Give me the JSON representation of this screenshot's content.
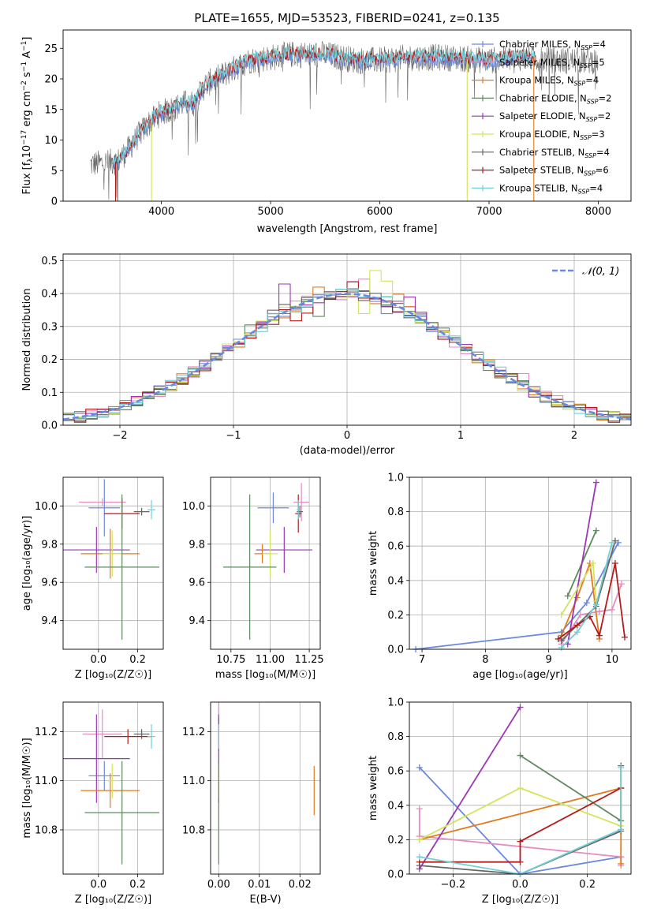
{
  "colors": {
    "Chabrier MILES": "#6a89e0",
    "Salpeter MILES": "#e58cc0",
    "Kroupa MILES": "#e07b1f",
    "Chabrier ELODIE": "#5e8a5e",
    "Salpeter ELODIE": "#9b36b5",
    "Kroupa ELODIE": "#d4e45a",
    "Chabrier STELIB": "#666666",
    "Salpeter STELIB": "#b31b1b",
    "Kroupa STELIB": "#72cfd6"
  },
  "chart_data": [
    {
      "id": "spectrum",
      "type": "line",
      "title": "PLATE=1655, MJD=53523, FIBERID=0241, z=0.135",
      "xlabel": "wavelength [Angstrom, rest frame]",
      "ylabel_parts": [
        "Flux [f",
        "λ",
        "10",
        "−17",
        " erg cm",
        "−2",
        " s",
        "−1",
        " A",
        "−1",
        "]"
      ],
      "xlim": [
        3100,
        8300
      ],
      "ylim": [
        0,
        28
      ],
      "xticks": [
        "4000",
        "5000",
        "6000",
        "7000",
        "8000"
      ],
      "yticks": [
        "0",
        "5",
        "10",
        "15",
        "20",
        "25"
      ],
      "legend_placement": "right",
      "legend": [
        {
          "label": "Chabrier MILES, N",
          "sub": "SSP",
          "suffix": "=4",
          "series": "Chabrier MILES"
        },
        {
          "label": "Salpeter MILES, N",
          "sub": "SSP",
          "suffix": "=5",
          "series": "Salpeter MILES"
        },
        {
          "label": "Kroupa MILES, N",
          "sub": "SSP",
          "suffix": "=4",
          "series": "Kroupa MILES"
        },
        {
          "label": "Chabrier ELODIE, N",
          "sub": "SSP",
          "suffix": "=2",
          "series": "Chabrier ELODIE"
        },
        {
          "label": "Salpeter ELODIE, N",
          "sub": "SSP",
          "suffix": "=2",
          "series": "Salpeter ELODIE"
        },
        {
          "label": "Kroupa ELODIE, N",
          "sub": "SSP",
          "suffix": "=3",
          "series": "Kroupa ELODIE"
        },
        {
          "label": "Chabrier STELIB, N",
          "sub": "SSP",
          "suffix": "=4",
          "series": "Chabrier STELIB"
        },
        {
          "label": "Salpeter STELIB, N",
          "sub": "SSP",
          "suffix": "=6",
          "series": "Salpeter STELIB"
        },
        {
          "label": "Kroupa STELIB, N",
          "sub": "SSP",
          "suffix": "=4",
          "series": "Kroupa STELIB"
        }
      ],
      "continuum": {
        "x": [
          3350,
          3600,
          3700,
          3800,
          3900,
          4000,
          4100,
          4200,
          4300,
          4400,
          4600,
          4800,
          5000,
          5200,
          5500,
          5800,
          6000,
          6300,
          6600,
          7000,
          7300,
          7600,
          8000
        ],
        "y": [
          6,
          6.5,
          8.5,
          11,
          13,
          14.5,
          15,
          16,
          16,
          19,
          21,
          23,
          23.5,
          24,
          24,
          23,
          23,
          23.5,
          23.5,
          23,
          23.5,
          23,
          23
        ]
      },
      "model_x_range": [
        3550,
        7420
      ],
      "dropouts": [
        {
          "series": "Salpeter STELIB",
          "x": 3580
        },
        {
          "series": "Chabrier STELIB",
          "x": 3600
        },
        {
          "series": "Kroupa ELODIE",
          "x": 3910
        },
        {
          "series": "Kroupa ELODIE",
          "x": 6800
        },
        {
          "series": "Kroupa MILES",
          "x": 7410
        }
      ]
    },
    {
      "id": "residual_hist",
      "type": "histogram",
      "xlabel": "(data-model)/error",
      "ylabel": "Normed distribution",
      "xlim": [
        -2.5,
        2.5
      ],
      "ylim": [
        0,
        0.52
      ],
      "xticks": [
        "−2",
        "−1",
        "0",
        "1",
        "2"
      ],
      "yticks": [
        "0.0",
        "0.1",
        "0.2",
        "0.3",
        "0.4",
        "0.5"
      ],
      "grid": true,
      "bin_width": 0.1,
      "reference": {
        "label": "𝒩(0, 1)",
        "mean": 0,
        "sigma": 1,
        "style": "dashed"
      },
      "series_bumps": [
        {
          "series": "Chabrier MILES",
          "at": [
            0.0,
            0.3
          ],
          "amp": [
            0.03,
            -0.02
          ]
        },
        {
          "series": "Salpeter MILES",
          "at": [
            0.1,
            1.6
          ],
          "amp": [
            0.05,
            0.02
          ]
        },
        {
          "series": "Kroupa MILES",
          "at": [
            -0.25,
            0.4
          ],
          "amp": [
            0.05,
            0.03
          ]
        },
        {
          "series": "Chabrier ELODIE",
          "at": [
            -0.25,
            -0.85
          ],
          "amp": [
            -0.05,
            0.03
          ]
        },
        {
          "series": "Salpeter ELODIE",
          "at": [
            -0.55,
            0.6
          ],
          "amp": [
            0.08,
            0.03
          ]
        },
        {
          "series": "Kroupa ELODIE",
          "at": [
            0.3,
            0.15
          ],
          "amp": [
            0.08,
            -0.04
          ]
        },
        {
          "series": "Chabrier STELIB",
          "at": [
            0.0,
            -0.6
          ],
          "amp": [
            0.01,
            0.02
          ]
        },
        {
          "series": "Salpeter STELIB",
          "at": [
            0.05,
            -0.4
          ],
          "amp": [
            0.05,
            -0.04
          ]
        },
        {
          "series": "Kroupa STELIB",
          "at": [
            0.0,
            0.4
          ],
          "amp": [
            0.0,
            0.01
          ]
        }
      ]
    },
    {
      "id": "age_vs_Z",
      "type": "errorbar",
      "xlabel": "Z [log₁₀(Z/Z☉)]",
      "ylabel": "age  [log₁₀(age/yr)]",
      "xlim": [
        -0.18,
        0.33
      ],
      "ylim": [
        9.25,
        10.15
      ],
      "xticks": [
        0.0,
        0.2
      ],
      "xtick_labels": [
        "0.0",
        "0.2"
      ],
      "yticks": [
        9.4,
        9.6,
        9.8,
        10.0
      ],
      "ytick_labels": [
        "9.4",
        "9.6",
        "9.8",
        "10.0"
      ],
      "grid": true,
      "points": [
        {
          "series": "Salpeter MILES",
          "x": 0.02,
          "y": 10.02,
          "xerr": 0.12,
          "yerr": 0.02
        },
        {
          "series": "Chabrier MILES",
          "x": 0.03,
          "y": 9.99,
          "xerr": 0.08,
          "yerr": 0.15
        },
        {
          "series": "Salpeter STELIB",
          "x": 0.12,
          "y": 9.96,
          "xerr": 0.09,
          "yerr": 0.08
        },
        {
          "series": "Chabrier STELIB",
          "x": 0.22,
          "y": 9.97,
          "xerr": 0.04,
          "yerr": 0.02
        },
        {
          "series": "Kroupa STELIB",
          "x": 0.27,
          "y": 9.98,
          "xerr": 0.02,
          "yerr": 0.05
        },
        {
          "series": "Salpeter ELODIE",
          "x": -0.01,
          "y": 9.77,
          "xerr": 0.17,
          "yerr": 0.12
        },
        {
          "series": "Kroupa MILES",
          "x": 0.06,
          "y": 9.75,
          "xerr": 0.15,
          "yerr": 0.13
        },
        {
          "series": "Kroupa ELODIE",
          "x": 0.07,
          "y": 9.75,
          "xerr": 0.05,
          "yerr": 0.12
        },
        {
          "series": "Chabrier ELODIE",
          "x": 0.12,
          "y": 9.68,
          "xerr": 0.19,
          "yerr": 0.38
        }
      ]
    },
    {
      "id": "age_vs_mass",
      "type": "errorbar",
      "xlabel": "mass [log₁₀(M/M☉)]",
      "ylabel": "",
      "xlim": [
        10.62,
        11.32
      ],
      "ylim": [
        9.25,
        10.15
      ],
      "xticks": [
        10.75,
        11.0,
        11.25
      ],
      "xtick_labels": [
        "10.75",
        "11.00",
        "11.25"
      ],
      "yticks": [
        9.4,
        9.6,
        9.8,
        10.0
      ],
      "ytick_labels": [
        "9.4",
        "9.6",
        "9.8",
        "10.0"
      ],
      "grid": true,
      "points": [
        {
          "series": "Salpeter MILES",
          "x": 11.2,
          "y": 10.02,
          "xerr": 0.05,
          "yerr": 0.1
        },
        {
          "series": "Chabrier MILES",
          "x": 11.02,
          "y": 9.99,
          "xerr": 0.1,
          "yerr": 0.08
        },
        {
          "series": "Salpeter STELIB",
          "x": 11.18,
          "y": 9.96,
          "xerr": 0.02,
          "yerr": 0.1
        },
        {
          "series": "Chabrier STELIB",
          "x": 11.19,
          "y": 9.97,
          "xerr": 0.02,
          "yerr": 0.03
        },
        {
          "series": "Kroupa STELIB",
          "x": 11.18,
          "y": 9.98,
          "xerr": 0.01,
          "yerr": 0.05
        },
        {
          "series": "Salpeter ELODIE",
          "x": 11.09,
          "y": 9.77,
          "xerr": 0.18,
          "yerr": 0.12
        },
        {
          "series": "Kroupa MILES",
          "x": 10.95,
          "y": 9.75,
          "xerr": 0.05,
          "yerr": 0.05
        },
        {
          "series": "Kroupa ELODIE",
          "x": 11.0,
          "y": 9.75,
          "xerr": 0.05,
          "yerr": 0.12
        },
        {
          "series": "Chabrier ELODIE",
          "x": 10.87,
          "y": 9.68,
          "xerr": 0.17,
          "yerr": 0.38
        }
      ]
    },
    {
      "id": "weight_vs_age",
      "type": "line",
      "xlabel": "age  [log₁₀(age/yr)]",
      "ylabel": "mass weight",
      "xlim": [
        6.8,
        10.3
      ],
      "ylim": [
        0,
        1
      ],
      "xticks": [
        7,
        8,
        9,
        10
      ],
      "xtick_labels": [
        "7",
        "8",
        "9",
        "10"
      ],
      "yticks": [
        0,
        0.2,
        0.4,
        0.6,
        0.8,
        1.0
      ],
      "ytick_labels": [
        "0.0",
        "0.2",
        "0.4",
        "0.6",
        "0.8",
        "1.0"
      ],
      "grid": true,
      "series": [
        {
          "name": "Chabrier MILES",
          "x": [
            6.9,
            9.2,
            9.6,
            10.1
          ],
          "y": [
            0.0,
            0.1,
            0.27,
            0.62
          ]
        },
        {
          "name": "Salpeter MILES",
          "x": [
            9.2,
            9.5,
            9.8,
            10.0,
            10.15
          ],
          "y": [
            0.03,
            0.2,
            0.22,
            0.23,
            0.38
          ]
        },
        {
          "name": "Kroupa MILES",
          "x": [
            9.2,
            9.45,
            9.65,
            9.8
          ],
          "y": [
            0.08,
            0.3,
            0.5,
            0.06
          ]
        },
        {
          "name": "Chabrier ELODIE",
          "x": [
            9.3,
            9.75
          ],
          "y": [
            0.31,
            0.69
          ]
        },
        {
          "name": "Salpeter ELODIE",
          "x": [
            9.3,
            9.75
          ],
          "y": [
            0.03,
            0.97
          ]
        },
        {
          "name": "Kroupa ELODIE",
          "x": [
            9.2,
            9.7,
            9.75
          ],
          "y": [
            0.2,
            0.5,
            0.28
          ]
        },
        {
          "name": "Chabrier STELIB",
          "x": [
            9.2,
            9.75,
            10.05
          ],
          "y": [
            0.05,
            0.25,
            0.63
          ]
        },
        {
          "name": "Salpeter STELIB",
          "x": [
            9.15,
            9.45,
            9.65,
            9.8,
            10.05,
            10.2
          ],
          "y": [
            0.06,
            0.14,
            0.19,
            0.08,
            0.5,
            0.07
          ]
        },
        {
          "name": "Kroupa STELIB",
          "x": [
            9.2,
            9.45,
            9.75,
            10.0
          ],
          "y": [
            0.01,
            0.1,
            0.26,
            0.62
          ]
        }
      ]
    },
    {
      "id": "mass_vs_Z",
      "type": "errorbar",
      "xlabel": "Z [log₁₀(Z/Z☉)]",
      "ylabel": "mass [log₁₀(M/M☉)]",
      "xlim": [
        -0.18,
        0.33
      ],
      "ylim": [
        10.62,
        11.32
      ],
      "xticks": [
        0.0,
        0.2
      ],
      "xtick_labels": [
        "0.0",
        "0.2"
      ],
      "yticks": [
        10.8,
        11.0,
        11.2
      ],
      "ytick_labels": [
        "10.8",
        "11.0",
        "11.2"
      ],
      "grid": true,
      "points": [
        {
          "series": "Salpeter MILES",
          "x": 0.02,
          "y": 11.19,
          "xerr": 0.1,
          "yerr": 0.1
        },
        {
          "series": "Chabrier MILES",
          "x": 0.03,
          "y": 11.02,
          "xerr": 0.08,
          "yerr": 0.06
        },
        {
          "series": "Salpeter STELIB",
          "x": 0.15,
          "y": 11.18,
          "xerr": 0.12,
          "yerr": 0.03
        },
        {
          "series": "Chabrier STELIB",
          "x": 0.22,
          "y": 11.19,
          "xerr": 0.04,
          "yerr": 0.02
        },
        {
          "series": "Kroupa STELIB",
          "x": 0.27,
          "y": 11.18,
          "xerr": 0.02,
          "yerr": 0.05
        },
        {
          "series": "Salpeter ELODIE",
          "x": -0.01,
          "y": 11.09,
          "xerr": 0.17,
          "yerr": 0.18
        },
        {
          "series": "Kroupa MILES",
          "x": 0.06,
          "y": 10.96,
          "xerr": 0.15,
          "yerr": 0.07
        },
        {
          "series": "Kroupa ELODIE",
          "x": 0.07,
          "y": 11.0,
          "xerr": 0.03,
          "yerr": 0.07
        },
        {
          "series": "Chabrier ELODIE",
          "x": 0.12,
          "y": 10.87,
          "xerr": 0.19,
          "yerr": 0.21
        }
      ]
    },
    {
      "id": "mass_vs_ebv",
      "type": "errorbar",
      "xlabel": "E(B-V)",
      "ylabel": "",
      "xlim": [
        -0.002,
        0.025
      ],
      "ylim": [
        10.62,
        11.32
      ],
      "xticks": [
        0.0,
        0.01,
        0.02
      ],
      "xtick_labels": [
        "0.00",
        "0.01",
        "0.02"
      ],
      "yticks": [
        10.8,
        11.0,
        11.2
      ],
      "ytick_labels": [
        "10.8",
        "11.0",
        "11.2"
      ],
      "grid": true,
      "points": [
        {
          "series": "Salpeter MILES",
          "x": 0.0,
          "y": 11.22,
          "xerr": 0.0,
          "yerr": 0.1
        },
        {
          "series": "Chabrier MILES",
          "x": 0.0,
          "y": 11.2,
          "xerr": 0.0,
          "yerr": 0.05
        },
        {
          "series": "Salpeter ELODIE",
          "x": 0.0,
          "y": 11.09,
          "xerr": 0.0,
          "yerr": 0.18
        },
        {
          "series": "Kroupa ELODIE",
          "x": 0.0,
          "y": 11.0,
          "xerr": 0.0,
          "yerr": 0.07
        },
        {
          "series": "Chabrier ELODIE",
          "x": 0.0,
          "y": 10.87,
          "xerr": 0.0,
          "yerr": 0.21
        },
        {
          "series": "Kroupa STELIB",
          "x": 0.0,
          "y": 11.18,
          "xerr": 0.0,
          "yerr": 0.05
        },
        {
          "series": "Kroupa MILES",
          "x": 0.0235,
          "y": 10.96,
          "xerr": 0.0,
          "yerr": 0.1
        }
      ]
    },
    {
      "id": "weight_vs_Z",
      "type": "line",
      "xlabel": "Z [log₁₀(Z/Z☉)]",
      "ylabel": "mass weight",
      "xlim": [
        -0.33,
        0.33
      ],
      "ylim": [
        0,
        1
      ],
      "xticks": [
        -0.2,
        0.0,
        0.2
      ],
      "xtick_labels": [
        "−0.2",
        "0.0",
        "0.2"
      ],
      "yticks": [
        0,
        0.2,
        0.4,
        0.6,
        0.8,
        1.0
      ],
      "ytick_labels": [
        "0.0",
        "0.2",
        "0.4",
        "0.6",
        "0.8",
        "1.0"
      ],
      "grid": true,
      "series": [
        {
          "name": "Chabrier MILES",
          "x": [
            -0.3,
            0.0,
            0.3
          ],
          "y": [
            0.62,
            0.0,
            0.1
          ]
        },
        {
          "name": "Salpeter MILES",
          "x": [
            -0.3,
            -0.3,
            0.3,
            0.3
          ],
          "y": [
            0.38,
            0.22,
            0.1,
            0.05
          ]
        },
        {
          "name": "Kroupa MILES",
          "x": [
            -0.3,
            0.3,
            0.3
          ],
          "y": [
            0.2,
            0.5,
            0.06
          ]
        },
        {
          "name": "Chabrier ELODIE",
          "x": [
            0.0,
            0.3
          ],
          "y": [
            0.69,
            0.31
          ]
        },
        {
          "name": "Salpeter ELODIE",
          "x": [
            -0.3,
            0.0
          ],
          "y": [
            0.03,
            0.97
          ]
        },
        {
          "name": "Kroupa ELODIE",
          "x": [
            -0.3,
            0.0,
            0.3
          ],
          "y": [
            0.2,
            0.5,
            0.28
          ]
        },
        {
          "name": "Chabrier STELIB",
          "x": [
            -0.3,
            0.0,
            0.3,
            0.3
          ],
          "y": [
            0.05,
            0.0,
            0.25,
            0.63
          ]
        },
        {
          "name": "Salpeter STELIB",
          "x": [
            -0.3,
            0.0,
            0.0,
            0.3,
            0.3
          ],
          "y": [
            0.07,
            0.07,
            0.19,
            0.5,
            0.5
          ]
        },
        {
          "name": "Kroupa STELIB",
          "x": [
            -0.3,
            0.0,
            0.3,
            0.3
          ],
          "y": [
            0.1,
            0.0,
            0.26,
            0.62
          ]
        }
      ]
    }
  ]
}
